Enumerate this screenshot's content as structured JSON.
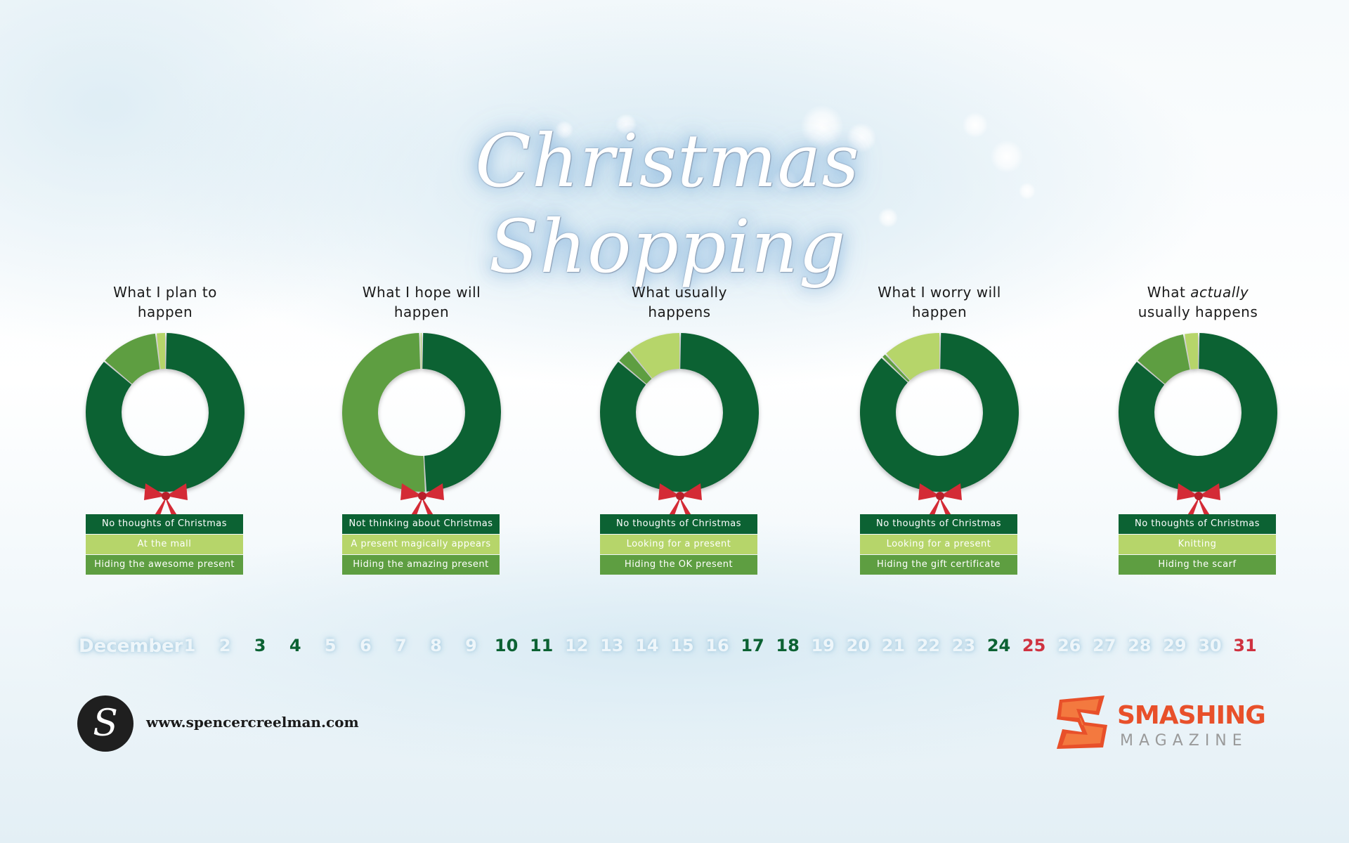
{
  "title": "Christmas Shopping",
  "colors": {
    "dark_green": "#0c6233",
    "mid_green": "#5e9e41",
    "light_green": "#b6d56a",
    "bow_red": "#d42b36",
    "smashing_orange": "#e8502a"
  },
  "chart_data": [
    {
      "type": "pie",
      "title": "What I plan to happen",
      "categories": [
        "No thoughts of Christmas",
        "At the mall",
        "Hiding the awesome present"
      ],
      "values": [
        86,
        2,
        12
      ]
    },
    {
      "type": "pie",
      "title": "What I hope will happen",
      "categories": [
        "Not thinking about Christmas",
        "A present magically appears",
        "Hiding the amazing present"
      ],
      "values": [
        49,
        0.5,
        50.5
      ]
    },
    {
      "type": "pie",
      "title": "What usually happens",
      "categories": [
        "No thoughts of Christmas",
        "Looking for a present",
        "Hiding the OK present"
      ],
      "values": [
        86,
        11,
        3
      ]
    },
    {
      "type": "pie",
      "title": "What I worry will happen",
      "categories": [
        "No thoughts of Christmas",
        "Looking for a present",
        "Hiding the gift certificate"
      ],
      "values": [
        87,
        12,
        1
      ]
    },
    {
      "type": "pie",
      "title_parts": [
        "What ",
        "actually",
        " usually happens"
      ],
      "categories": [
        "No thoughts of Christmas",
        "Knitting",
        "Hiding the scarf"
      ],
      "values": [
        86,
        3,
        11
      ]
    }
  ],
  "panel_titles": [
    [
      "What I plan to",
      "happen"
    ],
    [
      "What I hope will",
      "happen"
    ],
    [
      "What usually",
      "happens"
    ],
    [
      "What I worry will",
      "happen"
    ],
    [
      "What ",
      "actually",
      "usually happens"
    ]
  ],
  "calendar": {
    "month": "December",
    "days": [
      {
        "d": "1",
        "type": "normal"
      },
      {
        "d": "2",
        "type": "normal"
      },
      {
        "d": "3",
        "type": "green"
      },
      {
        "d": "4",
        "type": "green"
      },
      {
        "d": "5",
        "type": "normal"
      },
      {
        "d": "6",
        "type": "normal"
      },
      {
        "d": "7",
        "type": "normal"
      },
      {
        "d": "8",
        "type": "normal"
      },
      {
        "d": "9",
        "type": "normal"
      },
      {
        "d": "10",
        "type": "green"
      },
      {
        "d": "11",
        "type": "green"
      },
      {
        "d": "12",
        "type": "normal"
      },
      {
        "d": "13",
        "type": "normal"
      },
      {
        "d": "14",
        "type": "normal"
      },
      {
        "d": "15",
        "type": "normal"
      },
      {
        "d": "16",
        "type": "normal"
      },
      {
        "d": "17",
        "type": "green"
      },
      {
        "d": "18",
        "type": "green"
      },
      {
        "d": "19",
        "type": "normal"
      },
      {
        "d": "20",
        "type": "normal"
      },
      {
        "d": "21",
        "type": "normal"
      },
      {
        "d": "22",
        "type": "normal"
      },
      {
        "d": "23",
        "type": "normal"
      },
      {
        "d": "24",
        "type": "green"
      },
      {
        "d": "25",
        "type": "red"
      },
      {
        "d": "26",
        "type": "normal"
      },
      {
        "d": "27",
        "type": "normal"
      },
      {
        "d": "28",
        "type": "normal"
      },
      {
        "d": "29",
        "type": "normal"
      },
      {
        "d": "30",
        "type": "normal"
      },
      {
        "d": "31",
        "type": "red"
      }
    ]
  },
  "footer": {
    "site_logo_letter": "S",
    "site_url": "www.spencercreelman.com",
    "brand_name": "SMASHING",
    "brand_sub": "MAGAZINE"
  }
}
